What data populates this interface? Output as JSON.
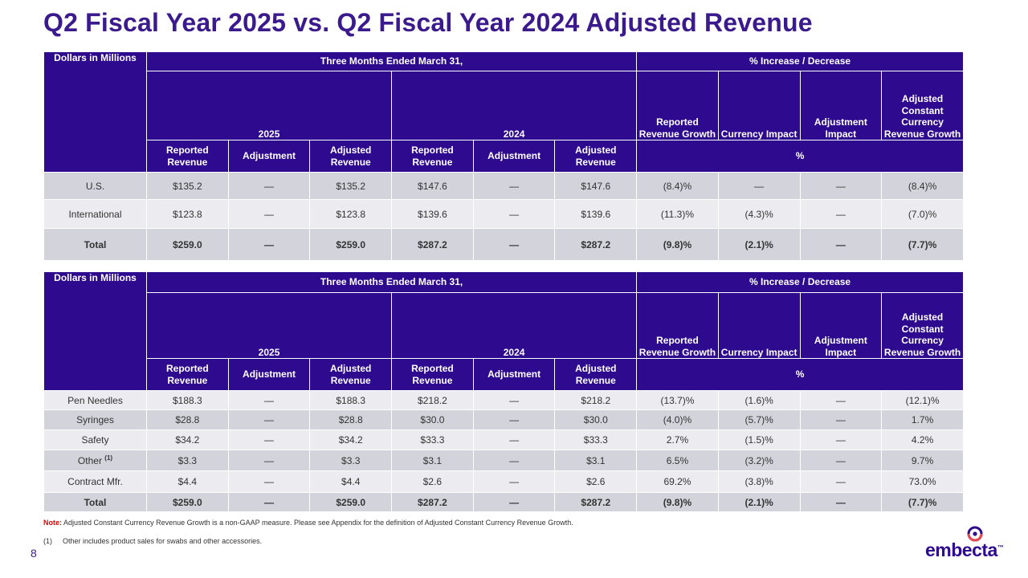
{
  "title": "Q2 Fiscal Year 2025 vs. Q2 Fiscal Year 2024 Adjusted Revenue",
  "headers": {
    "corner": "Dollars in Millions",
    "period": "Three Months Ended March 31,",
    "increase": "% Increase / Decrease",
    "year_current": "2025",
    "year_prior": "2024",
    "reported_revenue_growth": "Reported Revenue Growth",
    "currency_impact": "Currency Impact",
    "adjustment_impact": "Adjustment Impact",
    "adjusted_cc_growth": "Adjusted Constant Currency Revenue Growth",
    "reported_revenue": "Reported Revenue",
    "adjustment": "Adjustment",
    "adjusted_revenue": "Adjusted Revenue",
    "pct": "%"
  },
  "geo_table": {
    "rows": [
      {
        "label": "U.S.",
        "cells": [
          "$135.2",
          "—",
          "$135.2",
          "$147.6",
          "—",
          "$147.6",
          "(8.4)%",
          "—",
          "—",
          "(8.4)%"
        ]
      },
      {
        "label": "International",
        "cells": [
          "$123.8",
          "—",
          "$123.8",
          "$139.6",
          "—",
          "$139.6",
          "(11.3)%",
          "(4.3)%",
          "—",
          "(7.0)%"
        ]
      },
      {
        "label": "Total",
        "cells": [
          "$259.0",
          "—",
          "$259.0",
          "$287.2",
          "—",
          "$287.2",
          "(9.8)%",
          "(2.1)%",
          "—",
          "(7.7)%"
        ]
      }
    ]
  },
  "product_table": {
    "rows": [
      {
        "label": "Pen Needles",
        "cells": [
          "$188.3",
          "—",
          "$188.3",
          "$218.2",
          "—",
          "$218.2",
          "(13.7)%",
          "(1.6)%",
          "—",
          "(12.1)%"
        ]
      },
      {
        "label": "Syringes",
        "cells": [
          "$28.8",
          "—",
          "$28.8",
          "$30.0",
          "—",
          "$30.0",
          "(4.0)%",
          "(5.7)%",
          "—",
          "1.7%"
        ]
      },
      {
        "label": "Safety",
        "cells": [
          "$34.2",
          "—",
          "$34.2",
          "$33.3",
          "—",
          "$33.3",
          "2.7%",
          "(1.5)%",
          "—",
          "4.2%"
        ]
      },
      {
        "label": "Other",
        "footnote_ref": "(1)",
        "cells": [
          "$3.3",
          "—",
          "$3.3",
          "$3.1",
          "—",
          "$3.1",
          "6.5%",
          "(3.2)%",
          "—",
          "9.7%"
        ]
      },
      {
        "label": "Contract Mfr.",
        "cells": [
          "$4.4",
          "—",
          "$4.4",
          "$2.6",
          "—",
          "$2.6",
          "69.2%",
          "(3.8)%",
          "—",
          "73.0%"
        ]
      },
      {
        "label": "Total",
        "cells": [
          "$259.0",
          "—",
          "$259.0",
          "$287.2",
          "—",
          "$287.2",
          "(9.8)%",
          "(2.1)%",
          "—",
          "(7.7)%"
        ]
      }
    ]
  },
  "note": {
    "label": "Note:",
    "text": "Adjusted Constant Currency Revenue Growth is a non-GAAP measure. Please see Appendix for the definition of Adjusted Constant Currency Revenue Growth."
  },
  "footnote": {
    "num": "(1)",
    "text": "Other includes product sales for swabs and other accessories."
  },
  "page_number": "8",
  "logo": {
    "text": "embecta",
    "tm": "™"
  },
  "colors": {
    "brand": "#2e0a8f",
    "title": "#3a1a8c",
    "note_label": "#e00000",
    "row_dark": "#d3d3dc",
    "row_light": "#ebebf0"
  }
}
